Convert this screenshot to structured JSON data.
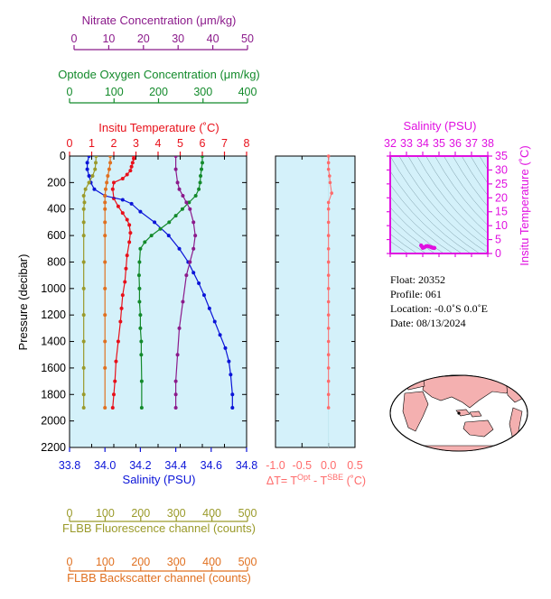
{
  "colors": {
    "nitrate": "#8b1a8b",
    "oxygen": "#138a2b",
    "temperature": "#e8101a",
    "salinity": "#0b14d8",
    "delta_t": "#ff6b6b",
    "fluorescence": "#9a9a2a",
    "backscatter": "#e07020",
    "ts_axis": "#e010e0",
    "panel_bg": "#d4f1fa",
    "land": "#f4b0b0"
  },
  "axes": {
    "nitrate": {
      "label": "Nitrate Concentration (μm/kg)",
      "ticks": [
        "0",
        "10",
        "20",
        "30",
        "40",
        "50"
      ],
      "range": [
        0,
        50
      ]
    },
    "oxygen": {
      "label": "Optode Oxygen Concentration (μm/kg)",
      "ticks": [
        "0",
        "100",
        "200",
        "300",
        "400"
      ],
      "range": [
        0,
        400
      ]
    },
    "temperature": {
      "label": "Insitu Temperature (˚C)",
      "ticks": [
        "0",
        "1",
        "2",
        "3",
        "4",
        "5",
        "6",
        "7",
        "8"
      ],
      "range": [
        0,
        8
      ]
    },
    "pressure": {
      "label": "Pressure (decibar)",
      "ticks": [
        "0",
        "200",
        "400",
        "600",
        "800",
        "1000",
        "1200",
        "1400",
        "1600",
        "1800",
        "2000",
        "2200"
      ],
      "range": [
        0,
        2200
      ]
    },
    "salinity": {
      "label": "Salinity (PSU)",
      "ticks": [
        "33.8",
        "34.0",
        "34.2",
        "34.4",
        "34.6",
        "34.8"
      ],
      "range": [
        33.8,
        34.8
      ]
    },
    "delta_t": {
      "label_prefix": "ΔT= T",
      "label_sup1": "Opt",
      "label_mid": " - T",
      "label_sup2": "SBE",
      "label_suffix": " (˚C)",
      "ticks": [
        "-1.0",
        "-0.5",
        "0.0",
        "0.5"
      ],
      "range": [
        -1.0,
        0.5
      ]
    },
    "fluorescence": {
      "label": "FLBB Fluorescence channel (counts)",
      "ticks": [
        "0",
        "100",
        "200",
        "300",
        "400",
        "500"
      ],
      "range": [
        0,
        500
      ]
    },
    "backscatter": {
      "label": "FLBB Backscatter channel (counts)",
      "ticks": [
        "0",
        "100",
        "200",
        "300",
        "400",
        "500"
      ],
      "range": [
        0,
        500
      ]
    }
  },
  "ts_diagram": {
    "label_top": "Salinity (PSU)",
    "sal_ticks": [
      "32",
      "33",
      "34",
      "35",
      "36",
      "37",
      "38"
    ],
    "sal_range": [
      32,
      38
    ],
    "label_right": "Insitu Temperature (˚C)",
    "temp_ticks": [
      "0",
      "5",
      "10",
      "15",
      "20",
      "25",
      "30",
      "35"
    ],
    "temp_range": [
      0,
      35
    ]
  },
  "info": {
    "float": "Float:  20352",
    "profile": "Profile:  061",
    "location": "Location:  -0.0˚S   0.0˚E",
    "date": "Date:  08/13/2024"
  },
  "chart_data": [
    {
      "type": "line",
      "name": "temperature",
      "xlabel": "Insitu Temperature (˚C)",
      "ylabel": "Pressure (decibar)",
      "xlim": [
        0,
        8
      ],
      "ylim": [
        2200,
        0
      ],
      "x": [
        2.9,
        2.9,
        2.85,
        2.8,
        2.75,
        2.6,
        2.4,
        2.0,
        1.95,
        2.0,
        2.2,
        2.4,
        2.6,
        2.7,
        2.75,
        2.7,
        2.6,
        2.55,
        2.5,
        2.4,
        2.35,
        2.3,
        2.2,
        2.1,
        2.05,
        2.0,
        1.95
      ],
      "y": [
        0,
        20,
        50,
        80,
        110,
        140,
        170,
        200,
        250,
        320,
        380,
        430,
        480,
        520,
        580,
        650,
        750,
        850,
        950,
        1050,
        1150,
        1250,
        1400,
        1550,
        1700,
        1800,
        1900
      ]
    },
    {
      "type": "line",
      "name": "salinity",
      "xlabel": "Salinity (PSU)",
      "xlim": [
        33.8,
        34.8
      ],
      "ylim": [
        2200,
        0
      ],
      "x": [
        33.91,
        33.9,
        33.9,
        33.91,
        33.92,
        33.94,
        34.0,
        34.1,
        34.15,
        34.2,
        34.28,
        34.36,
        34.42,
        34.47,
        34.5,
        34.53,
        34.56,
        34.59,
        34.62,
        34.65,
        34.68,
        34.7,
        34.71,
        34.72,
        34.72
      ],
      "y": [
        0,
        50,
        100,
        150,
        200,
        250,
        300,
        330,
        360,
        420,
        500,
        600,
        700,
        800,
        880,
        960,
        1050,
        1150,
        1250,
        1350,
        1450,
        1550,
        1650,
        1800,
        1900
      ]
    },
    {
      "type": "line",
      "name": "oxygen",
      "xlabel": "Optode Oxygen Concentration (μm/kg)",
      "xlim": [
        0,
        400
      ],
      "ylim": [
        2200,
        0
      ],
      "x": [
        300,
        300,
        298,
        296,
        295,
        292,
        285,
        270,
        255,
        240,
        225,
        205,
        185,
        170,
        160,
        158,
        157,
        158,
        158,
        160,
        160,
        162,
        162,
        163,
        163
      ],
      "y": [
        0,
        50,
        100,
        150,
        200,
        250,
        300,
        350,
        400,
        450,
        500,
        550,
        600,
        650,
        700,
        800,
        900,
        1000,
        1100,
        1200,
        1300,
        1400,
        1500,
        1700,
        1900
      ]
    },
    {
      "type": "line",
      "name": "nitrate",
      "xlabel": "Nitrate Concentration (μm/kg)",
      "xlim": [
        0,
        50
      ],
      "ylim": [
        2200,
        0
      ],
      "x": [
        30,
        30,
        30.5,
        31,
        32,
        33,
        34,
        35,
        35.5,
        35,
        34,
        33,
        32,
        31,
        30.5,
        30,
        30,
        30
      ],
      "y": [
        0,
        100,
        200,
        250,
        300,
        350,
        400,
        500,
        600,
        700,
        800,
        900,
        1100,
        1300,
        1500,
        1700,
        1800,
        1900
      ]
    },
    {
      "type": "line",
      "name": "fluorescence",
      "xlabel": "FLBB Fluorescence channel (counts)",
      "xlim": [
        0,
        500
      ],
      "ylim": [
        2200,
        0
      ],
      "x": [
        75,
        74,
        72,
        65,
        55,
        45,
        40,
        42,
        40,
        40,
        40,
        40,
        40,
        40,
        40,
        40,
        40,
        40
      ],
      "y": [
        0,
        50,
        100,
        150,
        200,
        250,
        300,
        350,
        400,
        500,
        600,
        800,
        1000,
        1200,
        1400,
        1600,
        1800,
        1900
      ]
    },
    {
      "type": "line",
      "name": "backscatter",
      "xlabel": "FLBB Backscatter channel (counts)",
      "xlim": [
        0,
        500
      ],
      "ylim": [
        2200,
        0
      ],
      "x": [
        115,
        115,
        112,
        108,
        105,
        102,
        100,
        100,
        100,
        100,
        100,
        100,
        100,
        100,
        100,
        100,
        100
      ],
      "y": [
        0,
        50,
        100,
        150,
        200,
        250,
        300,
        350,
        400,
        500,
        600,
        800,
        1000,
        1200,
        1400,
        1600,
        1900
      ]
    },
    {
      "type": "scatter",
      "name": "delta_t",
      "xlabel": "ΔT= T Opt - T SBE (˚C)",
      "xlim": [
        -1.0,
        0.5
      ],
      "ylim": [
        2200,
        0
      ],
      "x": [
        0.0,
        0.0,
        0.0,
        0.02,
        0.03,
        0.06,
        0.0,
        0.0,
        0.0,
        0.0,
        0.0,
        0.0,
        0.0,
        0.0,
        0.0,
        0.0,
        0.0,
        0.0,
        0.0,
        0.0,
        0.0,
        0.0,
        0.0
      ],
      "y": [
        0,
        50,
        100,
        150,
        200,
        280,
        350,
        400,
        500,
        600,
        700,
        800,
        900,
        1000,
        1100,
        1200,
        1300,
        1400,
        1500,
        1600,
        1700,
        1800,
        1900
      ]
    },
    {
      "type": "scatter",
      "name": "ts_diagram",
      "xlabel": "Salinity (PSU)",
      "ylabel": "Insitu Temperature (˚C)",
      "xlim": [
        32,
        38
      ],
      "ylim": [
        0,
        35
      ],
      "x": [
        33.9,
        33.95,
        34.0,
        34.1,
        34.2,
        34.3,
        34.4,
        34.5,
        34.55,
        34.6,
        34.65,
        34.7,
        34.72
      ],
      "y": [
        2.9,
        2.5,
        2.0,
        2.2,
        2.6,
        2.7,
        2.5,
        2.3,
        2.2,
        2.1,
        2.0,
        1.95,
        2.0
      ]
    }
  ]
}
